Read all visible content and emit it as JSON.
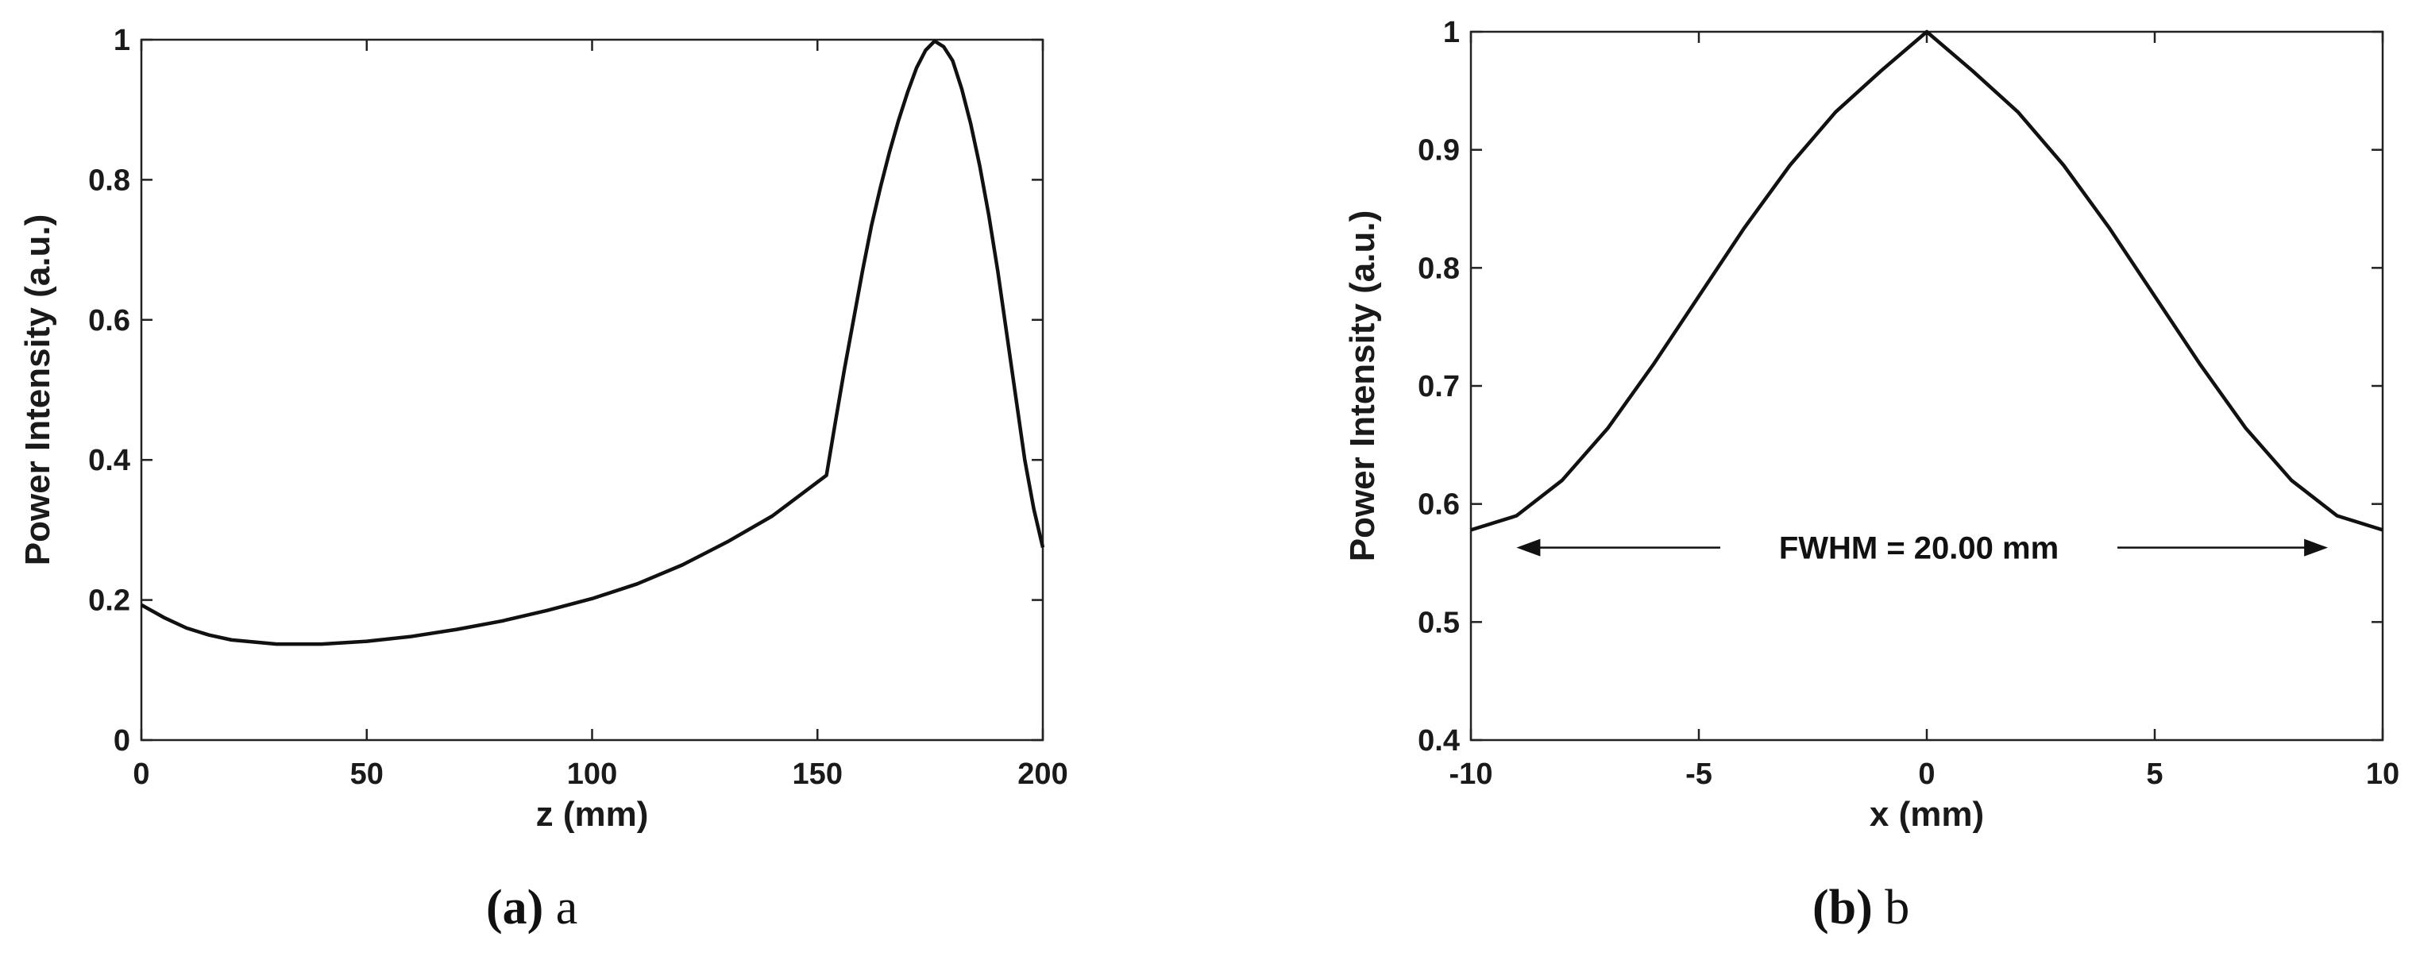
{
  "chart_data": [
    {
      "type": "line",
      "caption_tag": "(a)",
      "caption_text": "a",
      "xlabel": "z (mm)",
      "ylabel": "Power Intensity (a.u.)",
      "xlim": [
        0,
        200
      ],
      "ylim": [
        0,
        1
      ],
      "xticks": [
        "0",
        "50",
        "100",
        "150",
        "200"
      ],
      "yticks": [
        "0",
        "0.2",
        "0.4",
        "0.6",
        "0.8",
        "1"
      ],
      "grid": false,
      "series": [
        {
          "x": [
            0,
            5,
            10,
            15,
            20,
            30,
            40,
            50,
            60,
            70,
            80,
            90,
            100,
            110,
            120,
            130,
            140,
            152,
            154,
            156,
            158,
            160,
            162,
            164,
            166,
            168,
            170,
            172,
            174,
            176,
            178,
            180,
            182,
            184,
            186,
            188,
            190,
            192,
            194,
            196,
            198,
            200
          ],
          "y": [
            0.193,
            0.175,
            0.16,
            0.15,
            0.143,
            0.137,
            0.137,
            0.141,
            0.148,
            0.158,
            0.17,
            0.185,
            0.202,
            0.223,
            0.25,
            0.283,
            0.32,
            0.378,
            0.455,
            0.53,
            0.6,
            0.67,
            0.735,
            0.79,
            0.84,
            0.885,
            0.925,
            0.96,
            0.985,
            0.998,
            0.99,
            0.97,
            0.93,
            0.88,
            0.82,
            0.75,
            0.67,
            0.58,
            0.49,
            0.4,
            0.33,
            0.275
          ]
        }
      ]
    },
    {
      "type": "line",
      "caption_tag": "(b)",
      "caption_text": "b",
      "xlabel": "x (mm)",
      "ylabel": "Power Intensity (a.u.)",
      "xlim": [
        -10,
        10
      ],
      "ylim": [
        0.4,
        1
      ],
      "xticks": [
        "-10",
        "-5",
        "0",
        "5",
        "10"
      ],
      "yticks": [
        "0.4",
        "0.5",
        "0.6",
        "0.7",
        "0.8",
        "0.9",
        "1"
      ],
      "grid": false,
      "series": [
        {
          "x": [
            -10,
            -9,
            -8,
            -7,
            -6,
            -5,
            -4,
            -3,
            -2,
            -1,
            0,
            1,
            2,
            3,
            4,
            5,
            6,
            7,
            8,
            9,
            10
          ],
          "y": [
            0.578,
            0.59,
            0.62,
            0.664,
            0.718,
            0.776,
            0.834,
            0.887,
            0.932,
            0.967,
            1.0,
            0.967,
            0.932,
            0.887,
            0.834,
            0.776,
            0.718,
            0.664,
            0.62,
            0.59,
            0.578
          ]
        }
      ],
      "annotation": {
        "text": "FWHM = 20.00 mm",
        "x_start": -9,
        "x_end": 8.8,
        "y": 0.563
      }
    }
  ]
}
